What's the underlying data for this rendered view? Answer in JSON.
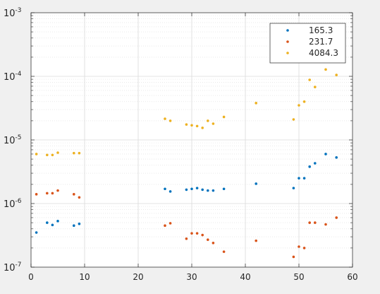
{
  "chart_data": {
    "type": "scatter",
    "title": "",
    "xlabel": "",
    "ylabel": "",
    "xlim": [
      0,
      60
    ],
    "ylim": [
      1e-07,
      0.001
    ],
    "yscale": "log",
    "grid": true,
    "minor_grid": true,
    "legend_position": "top-right",
    "x_ticks": [
      0,
      10,
      20,
      30,
      40,
      50,
      60
    ],
    "y_ticks": [
      {
        "value": 1e-07,
        "base": "10",
        "exp": "-7"
      },
      {
        "value": 1e-06,
        "base": "10",
        "exp": "-6"
      },
      {
        "value": 1e-05,
        "base": "10",
        "exp": "-5"
      },
      {
        "value": 0.0001,
        "base": "10",
        "exp": "-4"
      },
      {
        "value": 0.001,
        "base": "10",
        "exp": "-3"
      }
    ],
    "series": [
      {
        "name": "165.3",
        "color": "#0072bd",
        "points": [
          [
            1,
            3.5e-07
          ],
          [
            3,
            5e-07
          ],
          [
            4,
            4.6e-07
          ],
          [
            5,
            5.3e-07
          ],
          [
            8,
            4.5e-07
          ],
          [
            9,
            4.8e-07
          ],
          [
            25,
            1.7e-06
          ],
          [
            26,
            1.55e-06
          ],
          [
            29,
            1.65e-06
          ],
          [
            30,
            1.7e-06
          ],
          [
            31,
            1.75e-06
          ],
          [
            32,
            1.65e-06
          ],
          [
            33,
            1.6e-06
          ],
          [
            34,
            1.6e-06
          ],
          [
            36,
            1.7e-06
          ],
          [
            42,
            2.05e-06
          ],
          [
            49,
            1.75e-06
          ],
          [
            50,
            2.5e-06
          ],
          [
            51,
            2.5e-06
          ],
          [
            52,
            3.8e-06
          ],
          [
            53,
            4.3e-06
          ],
          [
            55,
            6e-06
          ],
          [
            57,
            5.3e-06
          ]
        ]
      },
      {
        "name": "231.7",
        "color": "#d95319",
        "points": [
          [
            1,
            1.4e-06
          ],
          [
            3,
            1.45e-06
          ],
          [
            4,
            1.45e-06
          ],
          [
            5,
            1.6e-06
          ],
          [
            8,
            1.4e-06
          ],
          [
            9,
            1.25e-06
          ],
          [
            25,
            4.5e-07
          ],
          [
            26,
            4.9e-07
          ],
          [
            29,
            2.8e-07
          ],
          [
            30,
            3.4e-07
          ],
          [
            31,
            3.4e-07
          ],
          [
            32,
            3.2e-07
          ],
          [
            33,
            2.7e-07
          ],
          [
            34,
            2.4e-07
          ],
          [
            36,
            1.75e-07
          ],
          [
            42,
            2.6e-07
          ],
          [
            49,
            1.45e-07
          ],
          [
            50,
            2.1e-07
          ],
          [
            51,
            2e-07
          ],
          [
            52,
            5e-07
          ],
          [
            53,
            5e-07
          ],
          [
            55,
            4.7e-07
          ],
          [
            57,
            6e-07
          ]
        ]
      },
      {
        "name": "4084.3",
        "color": "#edb120",
        "points": [
          [
            1,
            6e-06
          ],
          [
            3,
            5.8e-06
          ],
          [
            4,
            5.8e-06
          ],
          [
            5,
            6.3e-06
          ],
          [
            8,
            6.2e-06
          ],
          [
            9,
            6.2e-06
          ],
          [
            25,
            2.15e-05
          ],
          [
            26,
            2e-05
          ],
          [
            29,
            1.75e-05
          ],
          [
            30,
            1.7e-05
          ],
          [
            31,
            1.65e-05
          ],
          [
            32,
            1.55e-05
          ],
          [
            33,
            2e-05
          ],
          [
            34,
            1.8e-05
          ],
          [
            36,
            2.3e-05
          ],
          [
            42,
            3.8e-05
          ],
          [
            49,
            2.1e-05
          ],
          [
            50,
            3.5e-05
          ],
          [
            51,
            4e-05
          ],
          [
            52,
            8.8e-05
          ],
          [
            53,
            6.8e-05
          ],
          [
            55,
            0.000128
          ],
          [
            57,
            0.000105
          ]
        ]
      }
    ]
  }
}
